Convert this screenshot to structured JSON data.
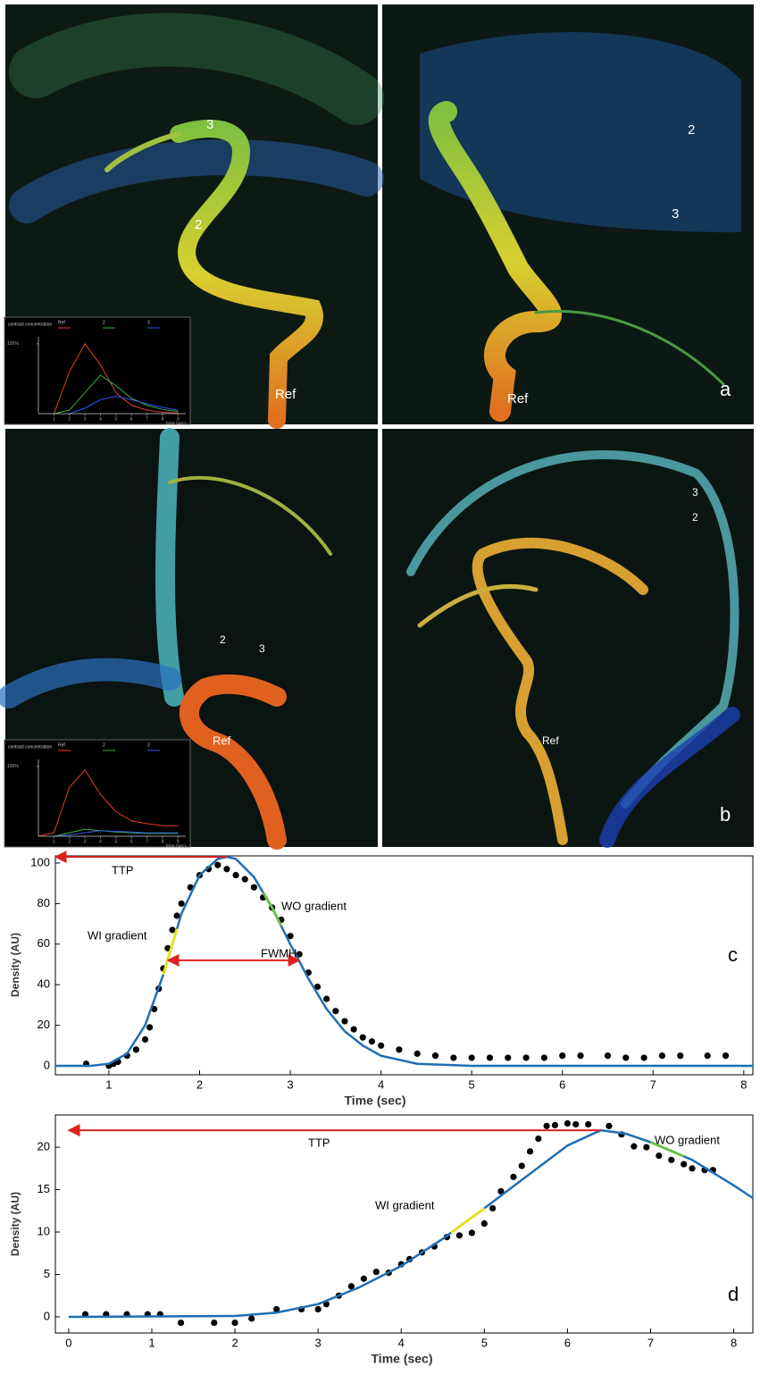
{
  "figure": {
    "panels": [
      {
        "labels": [
          "3",
          "2",
          "Ref"
        ],
        "letter": null,
        "inset": {
          "header": "contrast concentration",
          "series": [
            {
              "name": "Ref",
              "color": "#e0402a",
              "values": [
                0,
                0,
                60,
                100,
                70,
                30,
                12,
                5,
                2,
                1
              ]
            },
            {
              "name": "2",
              "color": "#3cb043",
              "values": [
                0,
                0,
                5,
                30,
                55,
                40,
                22,
                12,
                6,
                3
              ]
            },
            {
              "name": "3",
              "color": "#3355ee",
              "values": [
                0,
                0,
                0,
                8,
                20,
                25,
                20,
                14,
                9,
                5
              ]
            }
          ],
          "x": [
            0,
            1,
            2,
            3,
            4,
            5,
            6,
            7,
            8,
            9
          ],
          "xticks": [
            1,
            2,
            3,
            4,
            5,
            6,
            7,
            8,
            9
          ],
          "yticks": [
            {
              "value": 100,
              "label": "100%"
            }
          ],
          "xlabel": "time (sec)"
        }
      },
      {
        "labels": [
          "2",
          "3",
          "Ref"
        ],
        "letter": "a",
        "inset": null
      },
      {
        "labels": [
          "2",
          "3",
          "Ref"
        ],
        "letter": null,
        "inset": {
          "header": "contrast concentration",
          "series": [
            {
              "name": "Ref",
              "color": "#e0402a",
              "values": [
                0,
                5,
                70,
                95,
                60,
                35,
                22,
                18,
                15,
                15
              ]
            },
            {
              "name": "2",
              "color": "#3cb043",
              "values": [
                0,
                0,
                5,
                10,
                8,
                6,
                5,
                4,
                4,
                4
              ]
            },
            {
              "name": "3",
              "color": "#3355ee",
              "values": [
                0,
                0,
                2,
                5,
                8,
                7,
                6,
                5,
                5,
                5
              ]
            }
          ],
          "x": [
            0,
            1,
            2,
            3,
            4,
            5,
            6,
            7,
            8,
            9
          ],
          "xticks": [
            1,
            2,
            3,
            4,
            5,
            6,
            7,
            8,
            9
          ],
          "yticks": [
            {
              "value": 100,
              "label": "100%"
            }
          ],
          "xlabel": "time (sec)"
        }
      },
      {
        "labels": [
          "3",
          "2",
          "Ref"
        ],
        "letter": "b",
        "inset": null
      }
    ]
  },
  "chart_data": [
    {
      "type": "scatter",
      "panel_label": "c",
      "xlabel": "Time (sec)",
      "ylabel": "Density (AU)",
      "xlim": [
        0.41,
        8.1
      ],
      "ylim": [
        -4.4,
        103.5
      ],
      "xticks": [
        1,
        2,
        3,
        4,
        5,
        6,
        7,
        8
      ],
      "yticks": [
        0,
        20,
        40,
        60,
        80,
        100
      ],
      "points": {
        "color": "#000000",
        "x": [
          0.75,
          1.0,
          1.05,
          1.1,
          1.2,
          1.3,
          1.4,
          1.45,
          1.5,
          1.55,
          1.6,
          1.65,
          1.7,
          1.75,
          1.8,
          1.9,
          2.0,
          2.1,
          2.2,
          2.3,
          2.4,
          2.5,
          2.6,
          2.7,
          2.8,
          2.9,
          3.0,
          3.1,
          3.2,
          3.3,
          3.4,
          3.5,
          3.6,
          3.7,
          3.8,
          3.9,
          4.0,
          4.2,
          4.4,
          4.6,
          4.8,
          5.0,
          5.2,
          5.4,
          5.6,
          5.8,
          6.0,
          6.2,
          6.5,
          6.7,
          6.9,
          7.1,
          7.3,
          7.6,
          7.8
        ],
        "values": [
          1,
          0,
          1,
          2,
          5,
          8,
          13,
          19,
          28,
          38,
          48,
          58,
          67,
          74,
          80,
          88,
          94,
          97,
          99,
          97,
          94,
          92,
          88,
          83,
          78,
          72,
          64,
          55,
          46,
          39,
          33,
          27,
          22,
          18,
          14,
          12,
          10,
          8,
          6,
          5,
          4,
          4,
          4,
          4,
          4,
          4,
          5,
          5,
          5,
          4,
          4,
          5,
          5,
          5,
          5
        ]
      },
      "fit": {
        "color": "#1f6fb2",
        "x": [
          0.41,
          0.8,
          1.0,
          1.2,
          1.4,
          1.6,
          1.8,
          2.0,
          2.2,
          2.3,
          2.4,
          2.6,
          2.8,
          3.0,
          3.2,
          3.4,
          3.6,
          3.8,
          4.0,
          4.4,
          5.0,
          8.1
        ],
        "values": [
          0,
          0,
          1,
          6,
          20,
          45,
          75,
          94,
          102,
          103,
          102,
          93,
          78,
          60,
          43,
          28,
          17,
          10,
          5,
          1,
          0,
          0
        ]
      },
      "arrows": [
        {
          "label": "TTP",
          "x": [
            0.41,
            2.3
          ],
          "y": 103,
          "heads": "start",
          "color": "#e02020"
        },
        {
          "label": "FWMH",
          "x": [
            1.65,
            3.1
          ],
          "y": 52,
          "heads": "both",
          "color": "#e02020"
        }
      ],
      "gradients": [
        {
          "label": "WI gradient",
          "x": [
            1.6,
            1.75
          ],
          "color": "#e6e020"
        },
        {
          "label": "WO gradient",
          "x": [
            2.7,
            2.9
          ],
          "color": "#6cc04a"
        }
      ]
    },
    {
      "type": "scatter",
      "panel_label": "d",
      "xlabel": "Time (sec)",
      "ylabel": "Density (AU)",
      "xlim": [
        -0.16,
        8.23
      ],
      "ylim": [
        -1.9,
        23.8
      ],
      "xticks": [
        0,
        1,
        2,
        3,
        4,
        5,
        6,
        7,
        8
      ],
      "yticks": [
        0,
        5,
        10,
        15,
        20
      ],
      "points": {
        "color": "#000000",
        "x": [
          0.2,
          0.45,
          0.7,
          0.95,
          1.1,
          1.35,
          1.75,
          2.0,
          2.2,
          2.5,
          2.8,
          3.0,
          3.1,
          3.25,
          3.4,
          3.55,
          3.7,
          3.85,
          4.0,
          4.1,
          4.25,
          4.4,
          4.55,
          4.7,
          4.85,
          5.0,
          5.1,
          5.2,
          5.35,
          5.45,
          5.55,
          5.65,
          5.75,
          5.85,
          6.0,
          6.1,
          6.25,
          6.5,
          6.65,
          6.8,
          6.95,
          7.1,
          7.25,
          7.4,
          7.5,
          7.65,
          7.75
        ],
        "values": [
          0.3,
          0.3,
          0.3,
          0.3,
          0.3,
          -0.7,
          -0.7,
          -0.7,
          -0.2,
          0.9,
          0.9,
          0.9,
          1.5,
          2.5,
          3.6,
          4.5,
          5.3,
          5.2,
          6.2,
          6.8,
          7.6,
          8.3,
          9.4,
          9.6,
          9.9,
          11.0,
          12.8,
          14.8,
          16.5,
          17.8,
          19.5,
          21.0,
          22.5,
          22.6,
          22.8,
          22.7,
          22.7,
          22.5,
          21.5,
          20.1,
          20.0,
          19.0,
          18.5,
          18.0,
          17.5,
          17.3,
          17.3
        ]
      },
      "fit": {
        "color": "#1f6fb2",
        "x": [
          0,
          2,
          2.5,
          3,
          3.5,
          4,
          4.5,
          5,
          5.5,
          6,
          6.4,
          6.7,
          7,
          7.5,
          8,
          8.23
        ],
        "values": [
          0,
          0.1,
          0.5,
          1.5,
          3.5,
          6,
          9.2,
          12.8,
          16.5,
          20.2,
          22,
          21.6,
          20.6,
          18.5,
          15.5,
          14
        ]
      },
      "arrows": [
        {
          "label": "TTP",
          "x": [
            0,
            6.4
          ],
          "y": 22,
          "heads": "start",
          "color": "#e02020"
        }
      ],
      "gradients": [
        {
          "label": "WI gradient",
          "x": [
            4.6,
            5.0
          ],
          "color": "#e6e020"
        },
        {
          "label": "WO gradient",
          "x": [
            7.0,
            7.4
          ],
          "color": "#6cc04a"
        }
      ]
    }
  ]
}
